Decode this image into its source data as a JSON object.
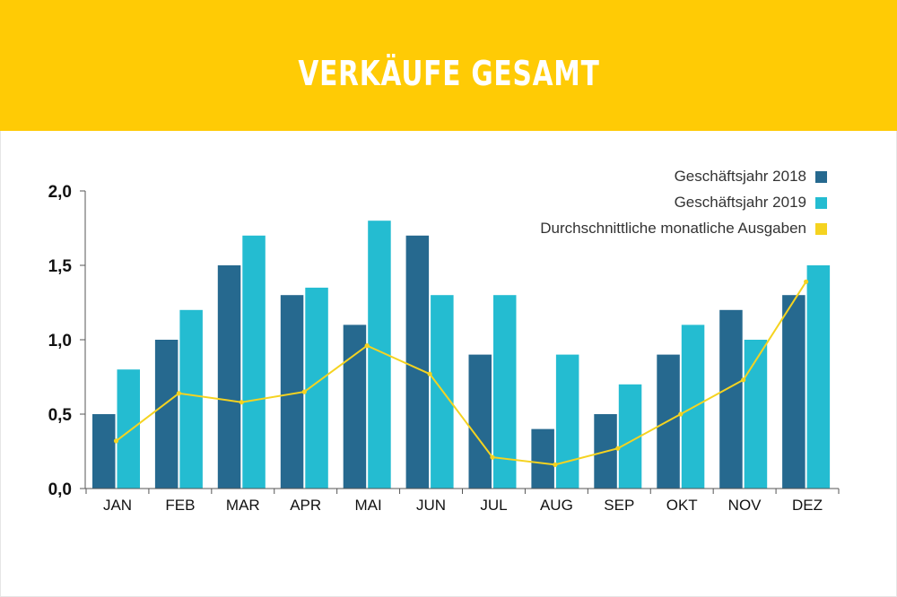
{
  "header": {
    "title": "VERKÄUFE GESAMT",
    "bg_color": "#FFCB05"
  },
  "chart_data": {
    "type": "bar",
    "title": "VERKÄUFE GESAMT",
    "categories": [
      "JAN",
      "FEB",
      "MAR",
      "APR",
      "MAI",
      "JUN",
      "JUL",
      "AUG",
      "SEP",
      "OKT",
      "NOV",
      "DEZ"
    ],
    "ylim": [
      0,
      2
    ],
    "yticks": [
      "0,0",
      "0,5",
      "1,0",
      "1,5",
      "2,0"
    ],
    "ytick_values": [
      0,
      0.5,
      1.0,
      1.5,
      2.0
    ],
    "grid": false,
    "legend_position": "top-right",
    "series": [
      {
        "name": "Geschäftsjahr  2018",
        "type": "bar",
        "color": "#26698F",
        "values": [
          0.5,
          1.0,
          1.5,
          1.3,
          1.1,
          1.7,
          0.9,
          0.4,
          0.5,
          0.9,
          1.2,
          1.3
        ]
      },
      {
        "name": "Geschäftsjahr  2019",
        "type": "bar",
        "color": "#24BCD1",
        "values": [
          0.8,
          1.2,
          1.7,
          1.35,
          1.8,
          1.3,
          1.3,
          0.9,
          0.7,
          1.1,
          1.0,
          1.5
        ]
      },
      {
        "name": "Durchschnittliche monatliche Ausgaben",
        "type": "line",
        "color": "#F5D320",
        "values": [
          0.32,
          0.64,
          0.58,
          0.65,
          0.96,
          0.77,
          0.21,
          0.16,
          0.27,
          0.5,
          0.73,
          1.39
        ]
      }
    ]
  }
}
